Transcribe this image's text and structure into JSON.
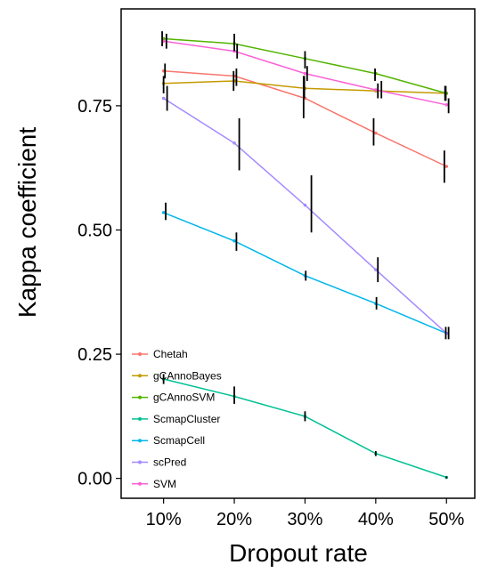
{
  "chart_data": {
    "type": "line",
    "title": "",
    "xlabel": "Dropout rate",
    "ylabel": "Kappa coefficient",
    "categories": [
      "10%",
      "20%",
      "30%",
      "40%",
      "50%"
    ],
    "x": [
      10,
      20,
      30,
      40,
      50
    ],
    "xlim": [
      4,
      54
    ],
    "ylim": [
      -0.04,
      0.945
    ],
    "yticks": [
      0.0,
      0.25,
      0.5,
      0.75
    ],
    "ytick_labels": [
      "0.00",
      "0.25",
      "0.50",
      "0.75"
    ],
    "grid": false,
    "legend_position": "bottom-left",
    "series": [
      {
        "name": "Chetah",
        "color": "#F8766D",
        "values": [
          0.82,
          0.81,
          0.765,
          0.695,
          0.628
        ],
        "err": [
          [
            0.805,
            0.835
          ],
          [
            0.79,
            0.825
          ],
          [
            0.725,
            0.81
          ],
          [
            0.67,
            0.725
          ],
          [
            0.595,
            0.66
          ]
        ],
        "err_x": [
          10.2,
          20.3,
          29.8,
          39.7,
          49.7
        ]
      },
      {
        "name": "gCAnnoBayes",
        "color": "#C49A00",
        "values": [
          0.795,
          0.8,
          0.785,
          0.78,
          0.775
        ],
        "err": [
          [
            0.775,
            0.81
          ],
          [
            0.78,
            0.82
          ],
          [
            0.765,
            0.81
          ],
          [
            0.765,
            0.795
          ],
          [
            0.76,
            0.79
          ]
        ],
        "err_x": [
          10.0,
          19.9,
          29.9,
          40.3,
          49.8
        ]
      },
      {
        "name": "gCAnnoSVM",
        "color": "#53B400",
        "values": [
          0.885,
          0.875,
          0.845,
          0.815,
          0.775
        ],
        "err": [
          [
            0.87,
            0.9
          ],
          [
            0.86,
            0.895
          ],
          [
            0.825,
            0.86
          ],
          [
            0.8,
            0.825
          ],
          [
            0.76,
            0.79
          ]
        ],
        "err_x": [
          9.8,
          20.0,
          30.0,
          39.9,
          49.9
        ]
      },
      {
        "name": "ScmapCluster",
        "color": "#00C094",
        "values": [
          0.2,
          0.165,
          0.125,
          0.05,
          0.002
        ],
        "err": [
          [
            0.19,
            0.21
          ],
          [
            0.15,
            0.185
          ],
          [
            0.115,
            0.135
          ],
          [
            0.045,
            0.055
          ],
          [
            0.0,
            0.004
          ]
        ],
        "err_x": [
          10.0,
          20.0,
          30.0,
          40.0,
          50.0
        ]
      },
      {
        "name": "ScmapCell",
        "color": "#00B6EB",
        "values": [
          0.535,
          0.478,
          0.408,
          0.352,
          0.292
        ],
        "err": [
          [
            0.52,
            0.555
          ],
          [
            0.458,
            0.495
          ],
          [
            0.398,
            0.418
          ],
          [
            0.34,
            0.365
          ],
          [
            0.28,
            0.305
          ]
        ],
        "err_x": [
          10.3,
          20.3,
          30.1,
          40.1,
          49.9
        ]
      },
      {
        "name": "scPred",
        "color": "#A58AFF",
        "values": [
          0.765,
          0.675,
          0.55,
          0.42,
          0.292
        ],
        "err": [
          [
            0.74,
            0.79
          ],
          [
            0.62,
            0.725
          ],
          [
            0.495,
            0.61
          ],
          [
            0.395,
            0.445
          ],
          [
            0.28,
            0.305
          ]
        ],
        "err_x": [
          10.5,
          20.7,
          30.9,
          40.3,
          50.3
        ]
      },
      {
        "name": "SVM",
        "color": "#FB61D7",
        "values": [
          0.88,
          0.86,
          0.815,
          0.782,
          0.752
        ],
        "err": [
          [
            0.865,
            0.895
          ],
          [
            0.845,
            0.875
          ],
          [
            0.8,
            0.83
          ],
          [
            0.765,
            0.8
          ],
          [
            0.735,
            0.765
          ]
        ],
        "err_x": [
          10.4,
          20.4,
          30.3,
          40.8,
          50.3
        ]
      }
    ]
  }
}
